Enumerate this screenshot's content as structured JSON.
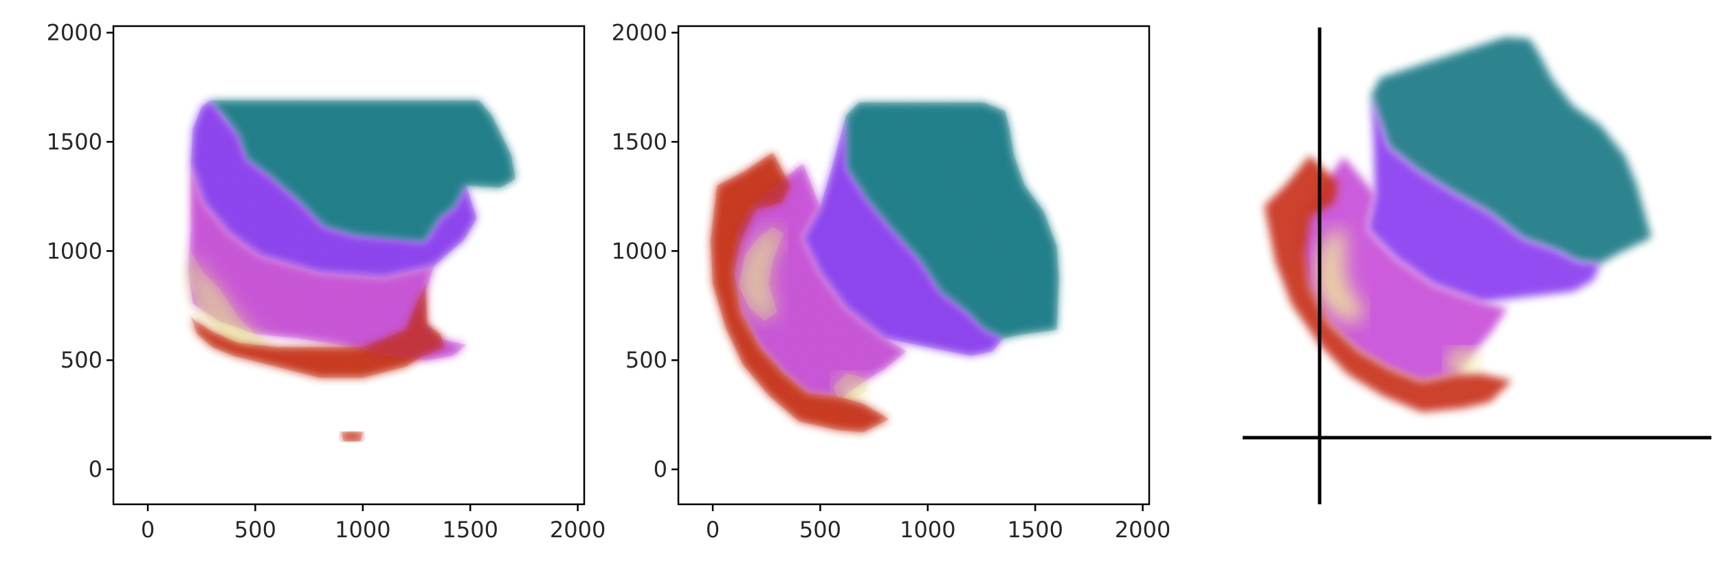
{
  "chart_data": [
    {
      "type": "scatter",
      "title": "",
      "xlabel": "",
      "ylabel": "",
      "xlim": [
        -160,
        2030
      ],
      "ylim": [
        -160,
        2030
      ],
      "x_ticks": [
        0,
        500,
        1000,
        1500,
        2000
      ],
      "y_ticks": [
        0,
        500,
        1000,
        1500,
        2000
      ],
      "x_tick_labels": [
        "0",
        "500",
        "1000",
        "1500",
        "2000"
      ],
      "y_tick_labels": [
        "0",
        "500",
        "1000",
        "1500",
        "2000"
      ],
      "grid": false,
      "axes_visible": true,
      "point_colors": {
        "teal": "#1d7a86",
        "violet": "#8a3cf0",
        "magenta": "#c84fd8",
        "pink": "#e8a0c8",
        "cream": "#efe79a",
        "red": "#c8301c"
      },
      "regions": [
        {
          "name": "teal",
          "color": "#1d7a86",
          "polygon": [
            [
              290,
              1690
            ],
            [
              1540,
              1690
            ],
            [
              1600,
              1620
            ],
            [
              1690,
              1440
            ],
            [
              1710,
              1330
            ],
            [
              1640,
              1290
            ],
            [
              1480,
              1300
            ],
            [
              1430,
              1200
            ],
            [
              1360,
              1150
            ],
            [
              1290,
              1040
            ],
            [
              1150,
              1050
            ],
            [
              960,
              1070
            ],
            [
              820,
              1110
            ],
            [
              700,
              1230
            ],
            [
              570,
              1340
            ],
            [
              460,
              1420
            ],
            [
              420,
              1530
            ],
            [
              360,
              1610
            ]
          ]
        },
        {
          "name": "violet",
          "color": "#8a3cf0",
          "polygon": [
            [
              250,
              1660
            ],
            [
              290,
              1690
            ],
            [
              420,
              1530
            ],
            [
              460,
              1420
            ],
            [
              570,
              1340
            ],
            [
              700,
              1230
            ],
            [
              820,
              1110
            ],
            [
              960,
              1070
            ],
            [
              1290,
              1040
            ],
            [
              1360,
              1150
            ],
            [
              1430,
              1200
            ],
            [
              1480,
              1300
            ],
            [
              1530,
              1150
            ],
            [
              1470,
              1050
            ],
            [
              1410,
              1000
            ],
            [
              1330,
              930
            ],
            [
              1100,
              880
            ],
            [
              800,
              900
            ],
            [
              520,
              980
            ],
            [
              380,
              1080
            ],
            [
              260,
              1220
            ],
            [
              200,
              1400
            ],
            [
              210,
              1560
            ]
          ]
        },
        {
          "name": "magenta",
          "color": "#c84fd8",
          "polygon": [
            [
              200,
              1400
            ],
            [
              260,
              1220
            ],
            [
              380,
              1080
            ],
            [
              520,
              980
            ],
            [
              800,
              900
            ],
            [
              1100,
              880
            ],
            [
              1330,
              930
            ],
            [
              1290,
              800
            ],
            [
              1280,
              680
            ],
            [
              1350,
              600
            ],
            [
              1480,
              570
            ],
            [
              1420,
              520
            ],
            [
              1300,
              500
            ],
            [
              1100,
              520
            ],
            [
              900,
              570
            ],
            [
              700,
              600
            ],
            [
              500,
              620
            ],
            [
              330,
              680
            ],
            [
              210,
              760
            ],
            [
              190,
              900
            ],
            [
              200,
              1100
            ]
          ]
        },
        {
          "name": "cream",
          "color": "#efe79a",
          "polygon": [
            [
              200,
              1000
            ],
            [
              260,
              900
            ],
            [
              340,
              820
            ],
            [
              420,
              700
            ],
            [
              500,
              620
            ],
            [
              570,
              580
            ],
            [
              470,
              560
            ],
            [
              380,
              590
            ],
            [
              300,
              660
            ],
            [
              230,
              760
            ],
            [
              190,
              880
            ]
          ]
        },
        {
          "name": "red",
          "color": "#c8301c",
          "polygon": [
            [
              200,
              700
            ],
            [
              230,
              620
            ],
            [
              300,
              560
            ],
            [
              400,
              520
            ],
            [
              600,
              470
            ],
            [
              800,
              420
            ],
            [
              1000,
              420
            ],
            [
              1200,
              470
            ],
            [
              1280,
              520
            ],
            [
              1380,
              560
            ],
            [
              1360,
              620
            ],
            [
              1300,
              660
            ],
            [
              1290,
              850
            ],
            [
              1200,
              640
            ],
            [
              1000,
              560
            ],
            [
              800,
              560
            ],
            [
              600,
              560
            ],
            [
              420,
              580
            ],
            [
              300,
              630
            ],
            [
              220,
              680
            ]
          ]
        },
        {
          "name": "red-small",
          "color": "#c8301c",
          "polygon": [
            [
              900,
              170
            ],
            [
              1000,
              170
            ],
            [
              990,
              130
            ],
            [
              910,
              130
            ]
          ]
        }
      ]
    },
    {
      "type": "scatter",
      "title": "",
      "xlabel": "",
      "ylabel": "",
      "xlim": [
        -160,
        2030
      ],
      "ylim": [
        -160,
        2030
      ],
      "x_ticks": [
        0,
        500,
        1000,
        1500,
        2000
      ],
      "y_ticks": [
        0,
        500,
        1000,
        1500,
        2000
      ],
      "x_tick_labels": [
        "0",
        "500",
        "1000",
        "1500",
        "2000"
      ],
      "y_tick_labels": [
        "0",
        "500",
        "1000",
        "1500",
        "2000"
      ],
      "grid": false,
      "axes_visible": true,
      "point_colors": {
        "teal": "#1d7a86",
        "violet": "#8a3cf0",
        "magenta": "#c84fd8",
        "pink": "#e8a0c8",
        "cream": "#efe79a",
        "red": "#c8301c"
      },
      "regions": [
        {
          "name": "teal",
          "color": "#1d7a86",
          "polygon": [
            [
              620,
              1620
            ],
            [
              680,
              1680
            ],
            [
              1260,
              1680
            ],
            [
              1360,
              1640
            ],
            [
              1380,
              1560
            ],
            [
              1400,
              1440
            ],
            [
              1450,
              1300
            ],
            [
              1540,
              1180
            ],
            [
              1600,
              1020
            ],
            [
              1610,
              880
            ],
            [
              1600,
              640
            ],
            [
              1450,
              620
            ],
            [
              1350,
              600
            ],
            [
              1260,
              640
            ],
            [
              1180,
              720
            ],
            [
              1060,
              810
            ],
            [
              960,
              960
            ],
            [
              830,
              1100
            ],
            [
              720,
              1230
            ],
            [
              620,
              1380
            ]
          ]
        },
        {
          "name": "violet",
          "color": "#8a3cf0",
          "polygon": [
            [
              500,
              1200
            ],
            [
              560,
              1400
            ],
            [
              620,
              1620
            ],
            [
              620,
              1380
            ],
            [
              720,
              1230
            ],
            [
              830,
              1100
            ],
            [
              960,
              960
            ],
            [
              1060,
              810
            ],
            [
              1180,
              720
            ],
            [
              1260,
              640
            ],
            [
              1350,
              600
            ],
            [
              1300,
              540
            ],
            [
              1200,
              520
            ],
            [
              1000,
              560
            ],
            [
              800,
              600
            ],
            [
              620,
              740
            ],
            [
              500,
              900
            ],
            [
              420,
              1060
            ]
          ]
        },
        {
          "name": "magenta",
          "color": "#c84fd8",
          "polygon": [
            [
              240,
              1260
            ],
            [
              420,
              1400
            ],
            [
              500,
              1200
            ],
            [
              420,
              1060
            ],
            [
              500,
              900
            ],
            [
              620,
              740
            ],
            [
              800,
              600
            ],
            [
              900,
              540
            ],
            [
              800,
              460
            ],
            [
              700,
              400
            ],
            [
              600,
              330
            ],
            [
              440,
              350
            ],
            [
              330,
              440
            ],
            [
              220,
              560
            ],
            [
              130,
              720
            ],
            [
              90,
              900
            ],
            [
              110,
              1100
            ],
            [
              170,
              1200
            ]
          ]
        },
        {
          "name": "cream",
          "color": "#efe79a",
          "polygon": [
            [
              150,
              980
            ],
            [
              210,
              1060
            ],
            [
              280,
              1110
            ],
            [
              330,
              1080
            ],
            [
              280,
              960
            ],
            [
              260,
              850
            ],
            [
              300,
              720
            ],
            [
              240,
              680
            ],
            [
              170,
              740
            ],
            [
              120,
              840
            ]
          ]
        },
        {
          "name": "cream-low",
          "color": "#efe79a",
          "polygon": [
            [
              560,
              380
            ],
            [
              620,
              440
            ],
            [
              700,
              420
            ],
            [
              720,
              360
            ],
            [
              650,
              320
            ],
            [
              580,
              330
            ]
          ]
        },
        {
          "name": "red",
          "color": "#c8301c",
          "polygon": [
            [
              20,
              1300
            ],
            [
              140,
              1360
            ],
            [
              280,
              1450
            ],
            [
              360,
              1300
            ],
            [
              320,
              1220
            ],
            [
              200,
              1190
            ],
            [
              130,
              1050
            ],
            [
              100,
              900
            ],
            [
              130,
              720
            ],
            [
              220,
              560
            ],
            [
              330,
              440
            ],
            [
              440,
              350
            ],
            [
              600,
              330
            ],
            [
              700,
              300
            ],
            [
              820,
              230
            ],
            [
              700,
              170
            ],
            [
              580,
              180
            ],
            [
              400,
              220
            ],
            [
              260,
              340
            ],
            [
              140,
              480
            ],
            [
              60,
              650
            ],
            [
              0,
              850
            ],
            [
              -10,
              1050
            ]
          ]
        }
      ]
    },
    {
      "type": "scatter",
      "title": "",
      "xlabel": "",
      "ylabel": "",
      "grid": false,
      "axes_visible": false,
      "reference_lines": "vertical and horizontal crosshair lines",
      "point_colors": {
        "teal": "#1d7a86",
        "violet": "#8a3cf0",
        "magenta": "#c84fd8",
        "pink": "#e8a0c8",
        "cream": "#efe79a",
        "red": "#c8301c"
      }
    }
  ]
}
